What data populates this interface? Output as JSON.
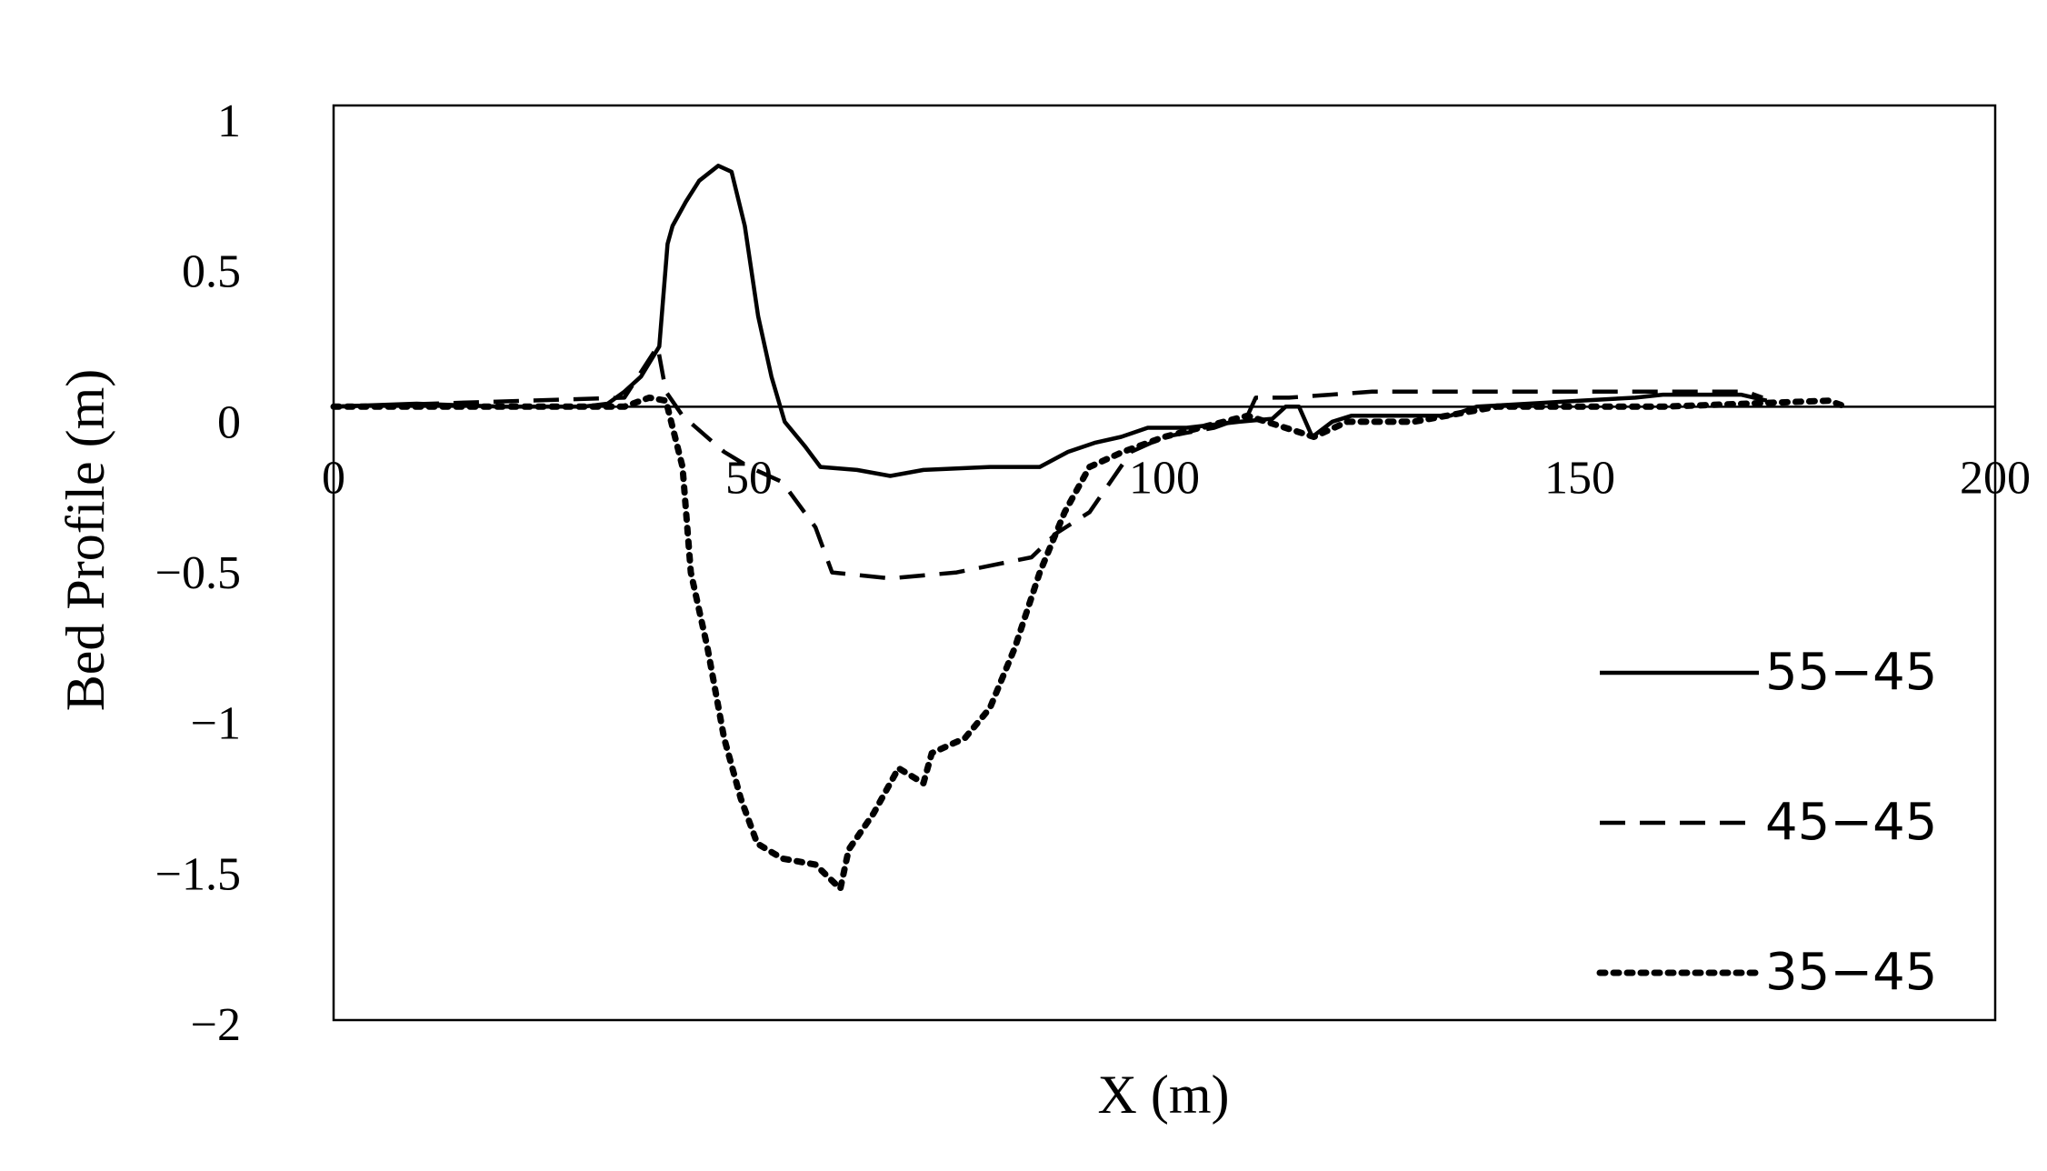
{
  "chart_data": {
    "type": "line",
    "x_label": "X (m)",
    "y_label": "Bed Profile (m)",
    "xlim": [
      0,
      200
    ],
    "xticks": [
      0,
      50,
      100,
      150,
      200
    ],
    "ylim": [
      -2,
      1
    ],
    "yticks": [
      1,
      0.5,
      0,
      {
        "value": -0.5,
        "label": "−0.5"
      },
      {
        "value": -1,
        "label": "−1"
      },
      {
        "value": -1.5,
        "label": "−1.5"
      },
      {
        "value": -2,
        "label": "−2"
      }
    ],
    "legend": "lower right",
    "series": [
      {
        "name": "55−45",
        "color": "#000000",
        "style": "solid",
        "x": [
          0,
          10,
          20,
          30,
          33,
          35,
          37,
          39.2,
          40.2,
          40.8,
          42.4,
          44,
          46.3,
          47.9,
          49.5,
          51.1,
          52.7,
          54.3,
          56.7,
          58.6,
          63,
          67,
          71,
          79,
          85,
          88.4,
          91.6,
          94.8,
          98,
          102.7,
          109,
          113,
          114.6,
          116.2,
          117.8,
          120.2,
          122.5,
          128,
          134.4,
          137.6,
          150,
          156.7,
          160,
          169.4,
          172.5
        ],
        "values": [
          0,
          0.01,
          0,
          0,
          0.01,
          0.05,
          0.1,
          0.2,
          0.54,
          0.6,
          0.68,
          0.75,
          0.8,
          0.78,
          0.6,
          0.3,
          0.1,
          -0.05,
          -0.13,
          -0.2,
          -0.21,
          -0.23,
          -0.21,
          -0.2,
          -0.2,
          -0.15,
          -0.12,
          -0.1,
          -0.07,
          -0.07,
          -0.05,
          -0.04,
          0,
          0,
          -0.1,
          -0.05,
          -0.03,
          -0.03,
          -0.03,
          0,
          0.02,
          0.03,
          0.04,
          0.04,
          0.02
        ]
      },
      {
        "name": "45−45",
        "color": "#000000",
        "style": "dashed",
        "x": [
          0,
          35,
          39,
          40,
          42,
          47,
          50,
          54,
          58,
          60,
          67,
          75,
          84,
          87,
          91,
          96,
          100,
          106,
          110,
          111,
          115,
          120,
          125,
          150,
          170,
          172
        ],
        "values": [
          0,
          0.03,
          0.2,
          0.05,
          -0.03,
          -0.15,
          -0.2,
          -0.25,
          -0.4,
          -0.55,
          -0.57,
          -0.55,
          -0.5,
          -0.42,
          -0.35,
          -0.15,
          -0.1,
          -0.07,
          -0.03,
          0.03,
          0.03,
          0.04,
          0.05,
          0.05,
          0.05,
          0.03
        ]
      },
      {
        "name": "35−45",
        "color": "#000000",
        "style": "dotted",
        "x": [
          0,
          35,
          38,
          40,
          42,
          43,
          45,
          47,
          49,
          51,
          54,
          58,
          61,
          62,
          65,
          68,
          71,
          72,
          76,
          79,
          82,
          85,
          88,
          91,
          95,
          100,
          110,
          118,
          122,
          130,
          140,
          160,
          180,
          182
        ],
        "values": [
          0,
          0,
          0.03,
          0.02,
          -0.2,
          -0.55,
          -0.8,
          -1.1,
          -1.3,
          -1.45,
          -1.5,
          -1.52,
          -1.6,
          -1.47,
          -1.35,
          -1.2,
          -1.25,
          -1.15,
          -1.1,
          -1,
          -0.8,
          -0.55,
          -0.35,
          -0.2,
          -0.15,
          -0.1,
          -0.03,
          -0.1,
          -0.05,
          -0.05,
          0,
          0,
          0.02,
          0
        ]
      }
    ]
  }
}
